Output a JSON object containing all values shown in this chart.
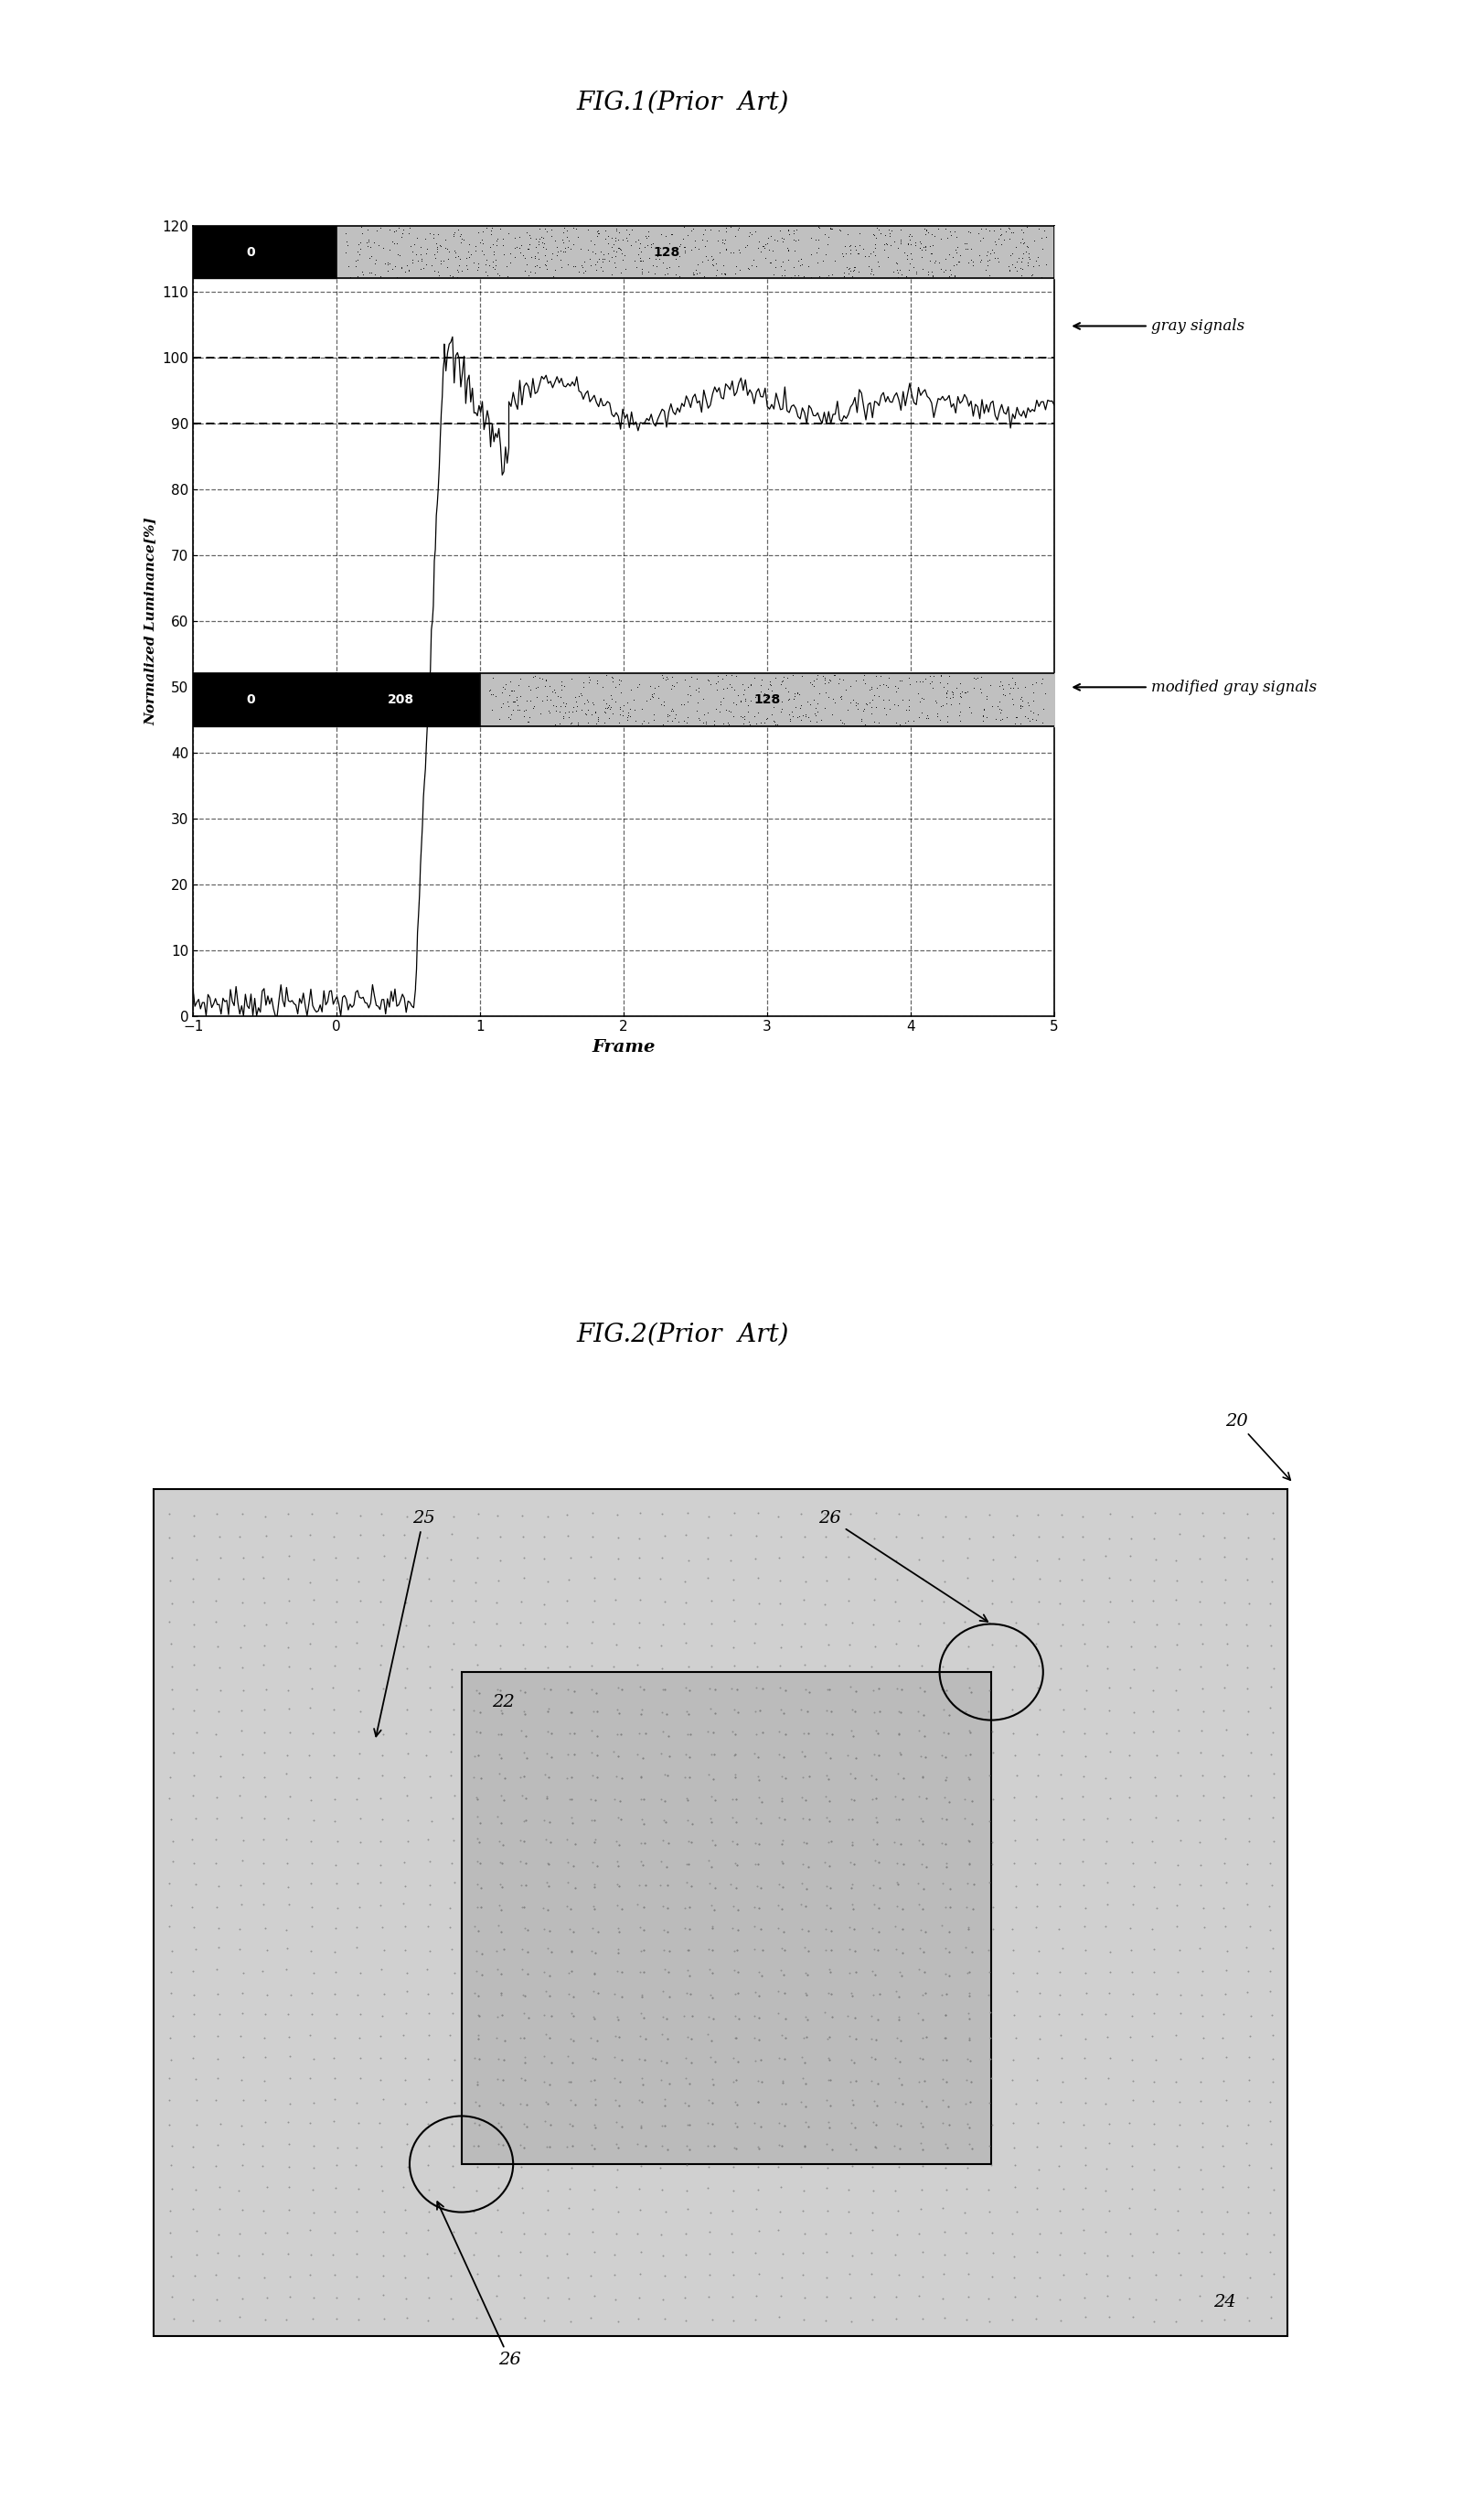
{
  "fig_width": 16.24,
  "fig_height": 27.42,
  "fig1_title": "FIG.1(Prior  Art)",
  "fig2_title": "FIG.2(Prior  Art)",
  "xlabel": "Frame",
  "ylabel": "Normalized Luminance[%]",
  "xlim": [
    -1,
    5
  ],
  "ylim": [
    0,
    120
  ],
  "yticks": [
    0,
    10,
    20,
    30,
    40,
    50,
    60,
    70,
    80,
    90,
    100,
    110,
    120
  ],
  "xticks": [
    -1,
    0,
    1,
    2,
    3,
    4,
    5
  ],
  "gray_label": "gray signals",
  "modified_label": "modified gray signals",
  "label_22": "22",
  "label_24": "24",
  "label_25": "25",
  "label_26": "26",
  "label_20": "20",
  "bg_color": "#ffffff",
  "plot_bg": "#ffffff",
  "outer_gray": "#c0c0c0",
  "inner_gray": "#a8a8a8",
  "bar_top_black": "#000000",
  "bar_top_gray": "#b0b0b0",
  "bar_bot_black": "#000000",
  "bar_bot_gray": "#b0b0b0"
}
